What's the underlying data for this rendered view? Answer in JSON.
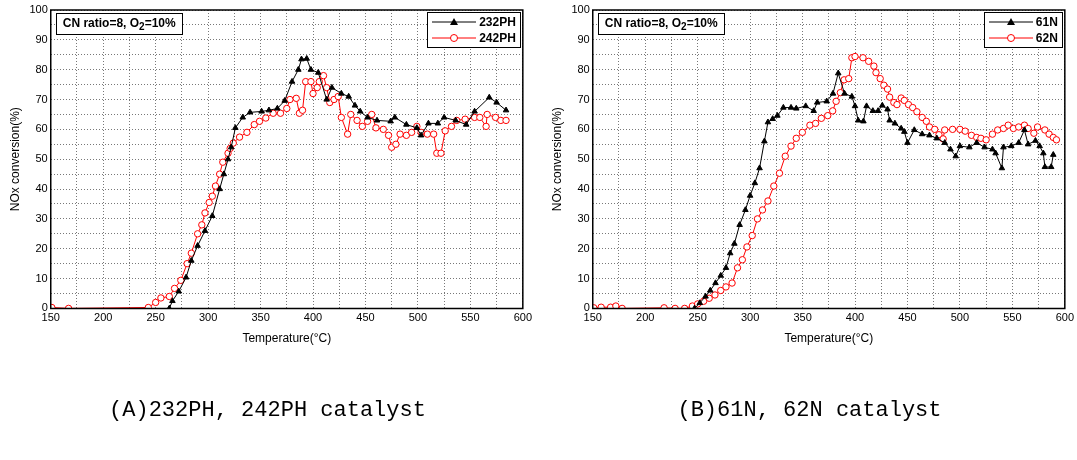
{
  "chart_data": [
    {
      "type": "line",
      "subtitle": "CN ratio=8, O$_{2}$=10%",
      "xlabel": "Temperature(°C)",
      "ylabel": "NOx conversion(%)",
      "annotations": [
        "(A)232PH, 242PH catalyst"
      ],
      "xlim": [
        150,
        600
      ],
      "ylim": [
        0,
        100
      ],
      "xticks": [
        150,
        {
          "value": 175,
          "label": null
        },
        200,
        {
          "value": 225,
          "label": null
        },
        250,
        {
          "value": 275,
          "label": null
        },
        300,
        {
          "value": 325,
          "label": null
        },
        350,
        {
          "value": 375,
          "label": null
        },
        400,
        {
          "value": 425,
          "label": null
        },
        450,
        {
          "value": 475,
          "label": null
        },
        500,
        {
          "value": 525,
          "label": null
        },
        550,
        {
          "value": 575,
          "label": null
        },
        600
      ],
      "yticks": [
        0,
        {
          "value": 5,
          "label": null
        },
        10,
        {
          "value": 15,
          "label": null
        },
        20,
        {
          "value": 25,
          "label": null
        },
        30,
        {
          "value": 35,
          "label": null
        },
        40,
        {
          "value": 45,
          "label": null
        },
        50,
        {
          "value": 55,
          "label": null
        },
        60,
        {
          "value": 65,
          "label": null
        },
        70,
        {
          "value": 75,
          "label": null
        },
        80,
        {
          "value": 85,
          "label": null
        },
        90,
        {
          "value": 95,
          "label": null
        },
        100
      ],
      "grid": true,
      "legend": "top right",
      "series": [
        {
          "name": "232PH",
          "color": "#000000",
          "marker": "triangle",
          "x": [
            263,
            266,
            272,
            279,
            284,
            290,
            297,
            304,
            311,
            315,
            319,
            322,
            326,
            333,
            340,
            351,
            358,
            366,
            373,
            380,
            386,
            389,
            394,
            398,
            405,
            413,
            418,
            427,
            434,
            440,
            445,
            452,
            461,
            474,
            478,
            489,
            499,
            503,
            510,
            519,
            525,
            536,
            546,
            554,
            568,
            575,
            584
          ],
          "values": [
            0,
            2.5,
            5.7,
            10.4,
            16,
            21,
            26,
            31,
            40,
            45,
            50,
            54,
            60.5,
            64,
            65.7,
            66,
            66.4,
            67,
            69.6,
            76,
            80,
            83.5,
            83.7,
            80,
            79,
            70,
            74,
            72,
            71,
            68,
            66,
            64,
            63,
            62.7,
            64,
            61.6,
            60.5,
            58,
            62,
            62,
            64,
            63,
            61.6,
            66,
            70.7,
            69,
            66.4
          ]
        },
        {
          "name": "242PH",
          "color": "#ff0000",
          "marker": "circle",
          "x": [
            151,
            167,
            243,
            250,
            255,
            263,
            268,
            274,
            280,
            284,
            290,
            294,
            297,
            301,
            304,
            307,
            311,
            314,
            319,
            321,
            324,
            330,
            337,
            344,
            349,
            355,
            362,
            369,
            375,
            378,
            384,
            387,
            390,
            393,
            398,
            400,
            404,
            406,
            410,
            413,
            416,
            420,
            424,
            427,
            433,
            436,
            442,
            447,
            452,
            456,
            460,
            467,
            472,
            475,
            479,
            483,
            489,
            494,
            499,
            503,
            509,
            515,
            518,
            522,
            526,
            532,
            537,
            545,
            554,
            559,
            565,
            566,
            574,
            579,
            584
          ],
          "values": [
            0.3,
            0,
            0.3,
            2,
            3.5,
            4,
            6.7,
            9.4,
            15,
            18.5,
            25,
            28,
            32,
            35.5,
            37.6,
            41,
            45,
            49,
            52,
            53.6,
            55.4,
            57.4,
            59,
            61.6,
            62.7,
            63.8,
            65.4,
            65.4,
            67,
            70,
            70.4,
            65.4,
            66.4,
            76,
            76,
            72,
            74,
            76,
            78,
            74,
            69,
            70,
            71,
            64,
            58.4,
            65,
            63,
            61,
            62.7,
            65,
            60.5,
            60,
            58,
            54,
            55,
            58.4,
            58,
            59,
            61,
            59,
            58.4,
            58.4,
            52,
            52,
            59.5,
            61,
            63,
            63.4,
            64,
            64,
            61,
            65,
            64,
            63,
            63
          ]
        }
      ]
    },
    {
      "type": "line",
      "subtitle": "CN ratio=8, O$_{2}$=10%",
      "xlabel": "Temperature(°C)",
      "ylabel": "NOx conversion(%)",
      "annotations": [
        "(B)61N, 62N catalyst"
      ],
      "xlim": [
        150,
        600
      ],
      "ylim": [
        0,
        100
      ],
      "xticks": [
        150,
        {
          "value": 175,
          "label": null
        },
        200,
        {
          "value": 225,
          "label": null
        },
        250,
        {
          "value": 275,
          "label": null
        },
        300,
        {
          "value": 325,
          "label": null
        },
        350,
        {
          "value": 375,
          "label": null
        },
        400,
        {
          "value": 425,
          "label": null
        },
        450,
        {
          "value": 475,
          "label": null
        },
        500,
        {
          "value": 525,
          "label": null
        },
        550,
        {
          "value": 575,
          "label": null
        },
        600
      ],
      "yticks": [
        0,
        {
          "value": 5,
          "label": null
        },
        10,
        {
          "value": 15,
          "label": null
        },
        20,
        {
          "value": 25,
          "label": null
        },
        30,
        {
          "value": 35,
          "label": null
        },
        40,
        {
          "value": 45,
          "label": null
        },
        50,
        {
          "value": 55,
          "label": null
        },
        60,
        {
          "value": 65,
          "label": null
        },
        70,
        {
          "value": 75,
          "label": null
        },
        80,
        {
          "value": 85,
          "label": null
        },
        90,
        {
          "value": 95,
          "label": null
        },
        100
      ],
      "grid": true,
      "legend": "top right",
      "series": [
        {
          "name": "61N",
          "color": "#000000",
          "marker": "triangle",
          "x": [
            247,
            252,
            257.5,
            262,
            267,
            272,
            277,
            281,
            285,
            290,
            295.5,
            300,
            304.5,
            309,
            313.6,
            317,
            321.5,
            326,
            331.7,
            339,
            344,
            353,
            360.6,
            364,
            373,
            379,
            384,
            390,
            397,
            400,
            403,
            408,
            411,
            417,
            422,
            426,
            431,
            433,
            438,
            444,
            447,
            450,
            456.5,
            464,
            471,
            478,
            485.5,
            491,
            496,
            500,
            509,
            516,
            523.5,
            531,
            534,
            540,
            541.5,
            549,
            556,
            561.5,
            565,
            572,
            576,
            579.5,
            581,
            587,
            589
          ],
          "values": [
            0,
            1.8,
            4,
            6,
            8.5,
            11,
            13.6,
            18.5,
            21.7,
            28,
            33,
            37.8,
            42,
            47,
            56,
            62.4,
            63.5,
            64.6,
            67.3,
            67.3,
            67,
            67.8,
            66.2,
            69,
            69.4,
            72,
            78.8,
            72,
            71,
            67.8,
            63,
            62.7,
            67.8,
            66.2,
            66.2,
            68,
            66.7,
            63,
            62,
            60.3,
            59.2,
            55.5,
            59.8,
            58.4,
            58,
            57,
            55.5,
            53.3,
            51,
            54.4,
            54,
            55.5,
            54,
            53.3,
            52,
            47,
            54,
            54.4,
            55.5,
            59.8,
            55,
            56.2,
            54.4,
            52,
            47.4,
            47.4,
            51.5
          ]
        },
        {
          "name": "62N",
          "color": "#ff0000",
          "marker": "circle",
          "x": [
            151,
            158,
            167,
            172,
            178,
            218,
            228.5,
            237.6,
            245,
            250,
            255.7,
            261,
            266.5,
            272,
            277,
            282.8,
            288,
            292.6,
            297,
            302,
            307,
            311.8,
            317,
            322.6,
            328,
            333.5,
            339,
            344,
            349.8,
            357,
            362.4,
            367.9,
            374,
            378.7,
            382,
            386,
            389.6,
            394,
            397,
            400,
            407.6,
            413,
            418,
            420,
            424,
            427.5,
            431,
            433,
            437,
            440,
            444,
            447,
            451,
            455,
            459,
            464,
            468,
            471,
            476,
            480,
            484,
            485.5,
            493,
            500,
            505,
            511,
            516,
            520,
            525,
            531,
            536,
            541.5,
            546,
            551,
            556,
            561.5,
            565,
            570.5,
            574,
            581,
            585,
            589,
            592
          ],
          "values": [
            0.2,
            0.4,
            0.4,
            0.8,
            0,
            0.2,
            0,
            0,
            0.8,
            1.5,
            2.4,
            3.4,
            4.5,
            6,
            7.2,
            8.5,
            13.6,
            16.3,
            20.6,
            24.4,
            30,
            33,
            36,
            41,
            45.3,
            51,
            54.4,
            57,
            59,
            61.4,
            62,
            63.7,
            64.6,
            66.2,
            69.4,
            72.3,
            76.6,
            77,
            84,
            84.4,
            84,
            82.8,
            81.2,
            79,
            77,
            74.8,
            73.5,
            70.8,
            69,
            68.3,
            70.5,
            69.7,
            68.3,
            67.3,
            65.9,
            64,
            62.7,
            60.8,
            60,
            58.2,
            56.8,
            59.8,
            60,
            60,
            59.4,
            58,
            57.3,
            57,
            56.5,
            58.4,
            59.8,
            60.3,
            61.4,
            60.3,
            60.8,
            61.4,
            60.3,
            58.7,
            60.8,
            59.8,
            58.4,
            57.3,
            56.5
          ]
        }
      ]
    }
  ]
}
